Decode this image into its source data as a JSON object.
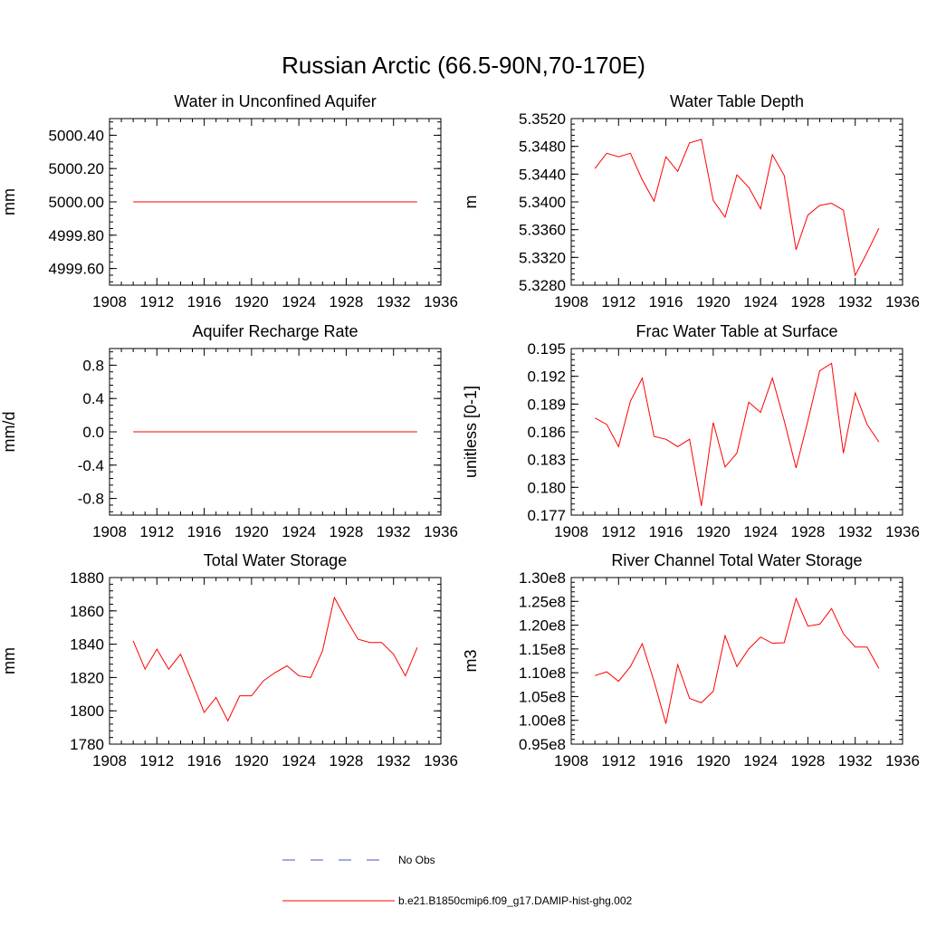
{
  "figure": {
    "title": "Russian Arctic (66.5-90N,70-170E)"
  },
  "legend": {
    "items": [
      {
        "label": "No Obs",
        "color": "#4a56c8",
        "dash": true
      },
      {
        "label": "b.e21.B1850cmip6.f09_g17.DAMIP-hist-ghg.002",
        "color": "#ff0000",
        "dash": false
      }
    ]
  },
  "colors": {
    "model": "#ff0000",
    "obs": "#4a56c8",
    "axis": "#000000"
  },
  "chart_data": [
    {
      "id": "aquifer",
      "type": "line",
      "title": "Water in Unconfined Aquifer",
      "ylabel": "mm",
      "xlabel": "",
      "xlim": [
        1908,
        1936
      ],
      "xticks": [
        1908,
        1912,
        1916,
        1920,
        1924,
        1928,
        1932,
        1936
      ],
      "ylim": [
        4999.5,
        5000.5
      ],
      "yticks": [
        4999.6,
        4999.8,
        5000.0,
        5000.2,
        5000.4
      ],
      "ytick_labels": [
        "4999.60",
        "4999.80",
        "5000.00",
        "5000.20",
        "5000.40"
      ],
      "yminor_step": 0.04,
      "series": [
        {
          "x": [
            1910,
            1911,
            1912,
            1913,
            1914,
            1915,
            1916,
            1917,
            1918,
            1919,
            1920,
            1921,
            1922,
            1923,
            1924,
            1925,
            1926,
            1927,
            1928,
            1929,
            1930,
            1931,
            1932,
            1933,
            1934
          ],
          "values": [
            5000,
            5000,
            5000,
            5000,
            5000,
            5000,
            5000,
            5000,
            5000,
            5000,
            5000,
            5000,
            5000,
            5000,
            5000,
            5000,
            5000,
            5000,
            5000,
            5000,
            5000,
            5000,
            5000,
            5000,
            5000
          ]
        }
      ]
    },
    {
      "id": "wtd",
      "type": "line",
      "title": "Water Table Depth",
      "ylabel": "m",
      "xlabel": "",
      "xlim": [
        1908,
        1936
      ],
      "xticks": [
        1908,
        1912,
        1916,
        1920,
        1924,
        1928,
        1932,
        1936
      ],
      "ylim": [
        5.328,
        5.352
      ],
      "yticks": [
        5.328,
        5.332,
        5.336,
        5.34,
        5.344,
        5.348,
        5.352
      ],
      "ytick_labels": [
        "5.3280",
        "5.3320",
        "5.3360",
        "5.3400",
        "5.3440",
        "5.3480",
        "5.3520"
      ],
      "yminor_step": 0.0008,
      "series": [
        {
          "x": [
            1910,
            1911,
            1912,
            1913,
            1914,
            1915,
            1916,
            1917,
            1918,
            1919,
            1920,
            1921,
            1922,
            1923,
            1924,
            1925,
            1926,
            1927,
            1928,
            1929,
            1930,
            1931,
            1932,
            1933,
            1934
          ],
          "values": [
            5.3448,
            5.347,
            5.3465,
            5.347,
            5.3432,
            5.3401,
            5.3465,
            5.3444,
            5.3485,
            5.349,
            5.3402,
            5.3378,
            5.3439,
            5.3421,
            5.339,
            5.3468,
            5.3438,
            5.3331,
            5.3381,
            5.3395,
            5.3398,
            5.3388,
            5.3294,
            5.3327,
            5.3362
          ]
        }
      ]
    },
    {
      "id": "recharge",
      "type": "line",
      "title": "Aquifer Recharge Rate",
      "ylabel": "mm/d",
      "xlabel": "",
      "xlim": [
        1908,
        1936
      ],
      "xticks": [
        1908,
        1912,
        1916,
        1920,
        1924,
        1928,
        1932,
        1936
      ],
      "ylim": [
        -1.0,
        1.0
      ],
      "yticks": [
        -0.8,
        -0.4,
        0.0,
        0.4,
        0.8
      ],
      "ytick_labels": [
        "-0.8",
        "-0.4",
        "0.0",
        "0.4",
        "0.8"
      ],
      "yminor_step": 0.08,
      "series": [
        {
          "x": [
            1910,
            1911,
            1912,
            1913,
            1914,
            1915,
            1916,
            1917,
            1918,
            1919,
            1920,
            1921,
            1922,
            1923,
            1924,
            1925,
            1926,
            1927,
            1928,
            1929,
            1930,
            1931,
            1932,
            1933,
            1934
          ],
          "values": [
            0,
            0,
            0,
            0,
            0,
            0,
            0,
            0,
            0,
            0,
            0,
            0,
            0,
            0,
            0,
            0,
            0,
            0,
            0,
            0,
            0,
            0,
            0,
            0,
            0
          ]
        }
      ]
    },
    {
      "id": "fracwt",
      "type": "line",
      "title": "Frac Water Table at Surface",
      "ylabel": "unitless [0-1]",
      "xlabel": "",
      "xlim": [
        1908,
        1936
      ],
      "xticks": [
        1908,
        1912,
        1916,
        1920,
        1924,
        1928,
        1932,
        1936
      ],
      "ylim": [
        0.177,
        0.195
      ],
      "yticks": [
        0.177,
        0.18,
        0.183,
        0.186,
        0.189,
        0.192,
        0.195
      ],
      "ytick_labels": [
        "0.177",
        "0.180",
        "0.183",
        "0.186",
        "0.189",
        "0.192",
        "0.195"
      ],
      "yminor_step": 0.0006,
      "series": [
        {
          "x": [
            1910,
            1911,
            1912,
            1913,
            1914,
            1915,
            1916,
            1917,
            1918,
            1919,
            1920,
            1921,
            1922,
            1923,
            1924,
            1925,
            1926,
            1927,
            1928,
            1929,
            1930,
            1931,
            1932,
            1933,
            1934
          ],
          "values": [
            0.1875,
            0.1868,
            0.1844,
            0.1893,
            0.1918,
            0.1855,
            0.1852,
            0.1844,
            0.1852,
            0.178,
            0.187,
            0.1822,
            0.1837,
            0.1892,
            0.1881,
            0.1918,
            0.1872,
            0.1821,
            0.1872,
            0.1926,
            0.1934,
            0.1837,
            0.1902,
            0.1868,
            0.1849
          ]
        }
      ]
    },
    {
      "id": "tws",
      "type": "line",
      "title": "Total Water Storage",
      "ylabel": "mm",
      "xlabel": "",
      "xlim": [
        1908,
        1936
      ],
      "xticks": [
        1908,
        1912,
        1916,
        1920,
        1924,
        1928,
        1932,
        1936
      ],
      "ylim": [
        1780,
        1880
      ],
      "yticks": [
        1780,
        1800,
        1820,
        1840,
        1860,
        1880
      ],
      "ytick_labels": [
        "1780",
        "1800",
        "1820",
        "1840",
        "1860",
        "1880"
      ],
      "yminor_step": 4,
      "series": [
        {
          "x": [
            1910,
            1911,
            1912,
            1913,
            1914,
            1915,
            1916,
            1917,
            1918,
            1919,
            1920,
            1921,
            1922,
            1923,
            1924,
            1925,
            1926,
            1927,
            1928,
            1929,
            1930,
            1931,
            1932,
            1933,
            1934
          ],
          "values": [
            1842,
            1825,
            1837,
            1825,
            1834,
            1817,
            1799,
            1808,
            1794,
            1809,
            1809,
            1818,
            1823,
            1827,
            1821,
            1820,
            1836,
            1868,
            1855,
            1843,
            1841,
            1841,
            1834,
            1821,
            1838
          ]
        }
      ]
    },
    {
      "id": "river",
      "type": "line",
      "title": "River Channel Total Water Storage",
      "ylabel": "m3",
      "xlabel": "",
      "xlim": [
        1908,
        1936
      ],
      "xticks": [
        1908,
        1912,
        1916,
        1920,
        1924,
        1928,
        1932,
        1936
      ],
      "ylim": [
        95000000.0,
        130000000.0
      ],
      "yticks": [
        95000000.0,
        100000000.0,
        105000000.0,
        110000000.0,
        115000000.0,
        120000000.0,
        125000000.0,
        130000000.0
      ],
      "ytick_labels": [
        "0.95e8",
        "1.00e8",
        "1.05e8",
        "1.10e8",
        "1.15e8",
        "1.20e8",
        "1.25e8",
        "1.30e8"
      ],
      "yminor_step": 1000000.0,
      "series": [
        {
          "x": [
            1910,
            1911,
            1912,
            1913,
            1914,
            1915,
            1916,
            1917,
            1918,
            1919,
            1920,
            1921,
            1922,
            1923,
            1924,
            1925,
            1926,
            1927,
            1928,
            1929,
            1930,
            1931,
            1932,
            1933,
            1934
          ],
          "values": [
            109400000.0,
            110200000.0,
            108200000.0,
            111300000.0,
            116100000.0,
            108200000.0,
            99300000.0,
            111700000.0,
            104600000.0,
            103700000.0,
            106100000.0,
            117800000.0,
            111300000.0,
            115000000.0,
            117500000.0,
            116200000.0,
            116300000.0,
            125600000.0,
            119800000.0,
            120200000.0,
            123500000.0,
            118200000.0,
            115400000.0,
            115400000.0,
            110900000.0
          ]
        }
      ]
    }
  ]
}
